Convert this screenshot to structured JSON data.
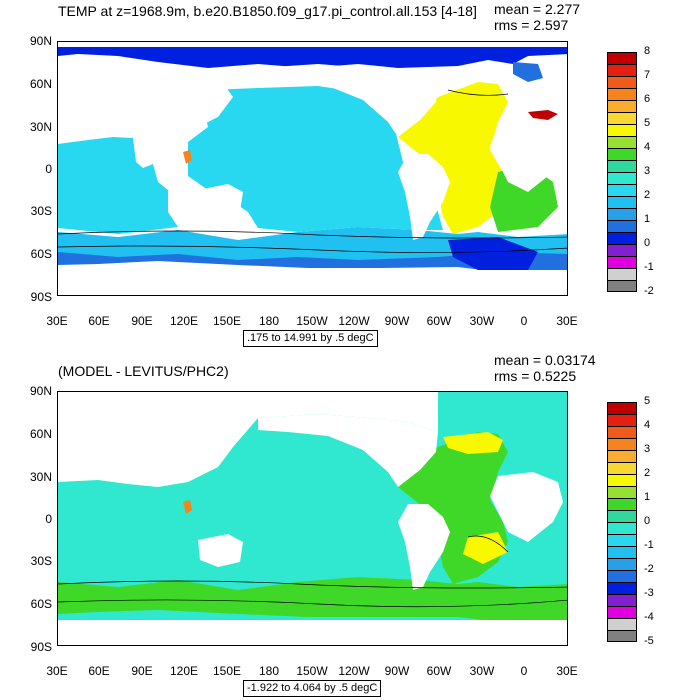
{
  "panels": [
    {
      "title": "TEMP at z=1968.9m, b.e20.B1850.f09_g17.pi_control.all.153 [4-18]",
      "mean_text": "mean = 2.277",
      "rms_text": "rms = 2.597",
      "range_text": ".175 to 14.991 by .5 degC",
      "lat_labels": [
        "90N",
        "60N",
        "30N",
        "0",
        "30S",
        "60S",
        "90S"
      ],
      "lon_labels": [
        "30E",
        "60E",
        "90E",
        "120E",
        "150E",
        "180",
        "150W",
        "120W",
        "90W",
        "60W",
        "30W",
        "0",
        "30E"
      ],
      "colorbar": {
        "labels": [
          "8",
          "7",
          "6",
          "5",
          "4",
          "3",
          "2",
          "1",
          "0",
          "-1",
          "-2"
        ],
        "colors": [
          "#c00000",
          "#e62010",
          "#f05a1a",
          "#f5841c",
          "#f8ac30",
          "#f8d830",
          "#f8f800",
          "#98e030",
          "#40d828",
          "#30d89c",
          "#30e8d0",
          "#28d8f0",
          "#20c0f0",
          "#28a0e8",
          "#2070e0",
          "#0020e0",
          "#8020d0",
          "#e000e0",
          "#d0d0d0",
          "#808080"
        ]
      }
    },
    {
      "title": "(MODEL - LEVITUS/PHC2)",
      "mean_text": "mean = 0.03174",
      "rms_text": "rms = 0.5225",
      "range_text": "-1.922 to 4.064 by .5 degC",
      "lat_labels": [
        "90N",
        "60N",
        "30N",
        "0",
        "30S",
        "60S",
        "90S"
      ],
      "lon_labels": [
        "30E",
        "60E",
        "90E",
        "120E",
        "150E",
        "180",
        "150W",
        "120W",
        "90W",
        "60W",
        "30W",
        "0",
        "30E"
      ],
      "colorbar": {
        "labels": [
          "5",
          "4",
          "3",
          "2",
          "1",
          "0",
          "-1",
          "-2",
          "-3",
          "-4",
          "-5"
        ],
        "colors": [
          "#c00000",
          "#e62010",
          "#f05a1a",
          "#f5841c",
          "#f8ac30",
          "#f8d830",
          "#f8f800",
          "#98e030",
          "#40d828",
          "#30d89c",
          "#30e8d0",
          "#28d8f0",
          "#20c0f0",
          "#28a0e8",
          "#2070e0",
          "#0020e0",
          "#8020d0",
          "#e000e0",
          "#d0d0d0",
          "#808080"
        ]
      }
    }
  ]
}
